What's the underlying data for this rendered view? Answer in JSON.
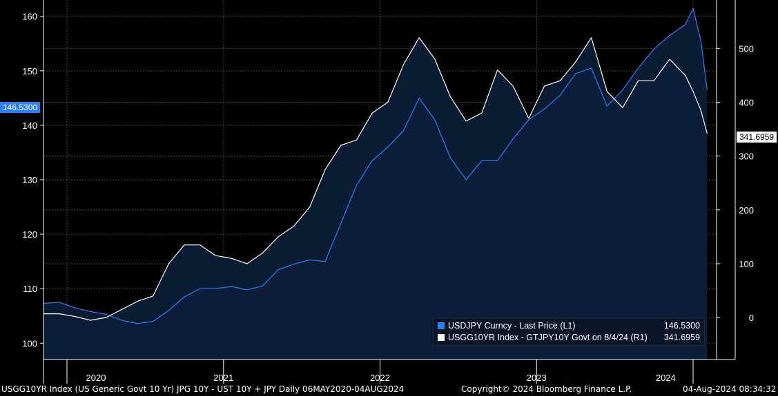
{
  "chart_data": {
    "type": "area",
    "title": "",
    "x": [
      2020.35,
      2020.45,
      2020.55,
      2020.65,
      2020.75,
      2020.85,
      2020.95,
      2021.05,
      2021.15,
      2021.25,
      2021.35,
      2021.45,
      2021.55,
      2021.65,
      2021.75,
      2021.85,
      2021.95,
      2022.05,
      2022.15,
      2022.25,
      2022.35,
      2022.45,
      2022.55,
      2022.65,
      2022.75,
      2022.85,
      2022.95,
      2023.05,
      2023.15,
      2023.25,
      2023.35,
      2023.45,
      2023.55,
      2023.65,
      2023.75,
      2023.85,
      2023.95,
      2024.05,
      2024.15,
      2024.25,
      2024.35,
      2024.45,
      2024.5,
      2024.55,
      2024.59
    ],
    "x_axis": {
      "ticks": [
        "2020",
        "2021",
        "2022",
        "2023",
        "2024"
      ],
      "range": [
        2020.35,
        2024.65
      ]
    },
    "series": [
      {
        "name": "USDJPY Curncy - Last Price (L1)",
        "axis": "left",
        "color": "#2d7ff9",
        "last_value": "146.5300",
        "values": [
          107.3,
          107.5,
          106.5,
          105.8,
          105.3,
          104.2,
          103.6,
          104.0,
          106.0,
          108.5,
          110.0,
          110.0,
          110.4,
          109.8,
          110.5,
          113.5,
          114.5,
          115.3,
          115.0,
          122.0,
          129.0,
          133.5,
          136.0,
          139.0,
          145.0,
          141.0,
          134.0,
          130.0,
          133.5,
          133.5,
          137.5,
          141.0,
          143.0,
          145.5,
          149.5,
          150.5,
          143.5,
          146.5,
          150.5,
          154.0,
          156.5,
          158.5,
          161.5,
          155.5,
          146.53
        ]
      },
      {
        "name": "USGG10YR Index - GTJPY10Y Govt on 8/4/24 (R1)",
        "axis": "right",
        "color": "#ffffff",
        "last_value": "341.6959",
        "values": [
          7,
          7,
          2,
          -5,
          0,
          15,
          30,
          40,
          100,
          135,
          135,
          115,
          110,
          100,
          120,
          150,
          170,
          205,
          275,
          320,
          330,
          380,
          400,
          470,
          520,
          480,
          410,
          365,
          380,
          460,
          430,
          370,
          430,
          440,
          475,
          520,
          420,
          390,
          440,
          440,
          480,
          450,
          420,
          385,
          341.6959
        ]
      }
    ],
    "y_left": {
      "ticks": [
        100,
        110,
        120,
        130,
        140,
        150,
        160
      ],
      "range": [
        97,
        163
      ]
    },
    "y_right": {
      "ticks": [
        0,
        100,
        200,
        300,
        400,
        500
      ],
      "range": [
        -78,
        590
      ]
    },
    "left_tag": "146.5300",
    "right_tag": "341.6959",
    "grid": true,
    "legend_position": "bottom-right"
  },
  "footer": {
    "description": "USGG10YR Index (US Generic Govt 10 Yr) JPG 10Y - UST 10Y + JPY  Daily 06MAY2020-04AUG2024",
    "copyright": "Copyright© 2024 Bloomberg Finance L.P.",
    "timestamp": "04-Aug-2024 08:34:32"
  },
  "colors": {
    "background": "#000000",
    "area_fill": "#0b1e3a",
    "accent_blue": "#2d7ff9",
    "series_white": "#ffffff"
  }
}
